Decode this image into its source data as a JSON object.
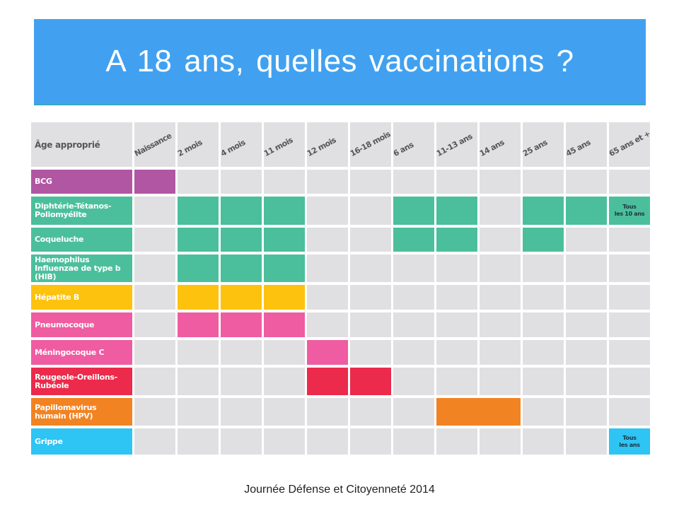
{
  "title": "A 18 ans, quelles vaccinations ?",
  "footer": "Journée Défense et Citoyenneté 2014",
  "colors": {
    "title_bg": "#41a1f0",
    "empty_cell": "#e0e0e2",
    "header_text": "#555759",
    "bcg": "#b156a3",
    "dtp": "#4bbf9b",
    "hepb": "#fdc20e",
    "pneumo": "#ef5ca1",
    "rouge": "#ec2a4b",
    "hpv": "#f28322",
    "grippe": "#2ec4f3"
  },
  "table": {
    "header_label": "Âge approprié",
    "ages": [
      "Naissance",
      "2 mois",
      "4 mois",
      "11 mois",
      "12 mois",
      "16-18 mois",
      "6 ans",
      "11-13 ans",
      "14 ans",
      "25 ans",
      "45 ans",
      "65 ans et +"
    ],
    "rows": [
      {
        "name": "BCG",
        "color": "#b156a3",
        "height": 34,
        "filled": [
          0
        ],
        "notes": {}
      },
      {
        "name": "Diphtérie-Tétanos-Poliomyélite",
        "color": "#4bbf9b",
        "height": 40,
        "filled": [
          1,
          2,
          3,
          6,
          7,
          9,
          10,
          11
        ],
        "notes": {
          "11": "Tous les 10 ans"
        }
      },
      {
        "name": "Coqueluche",
        "color": "#4bbf9b",
        "height": 34,
        "filled": [
          1,
          2,
          3,
          6,
          7,
          9
        ],
        "notes": {}
      },
      {
        "name": "Haemophilus Influenzae de type b (HIB)",
        "color": "#4bbf9b",
        "height": 39,
        "filled": [
          1,
          2,
          3
        ],
        "notes": {}
      },
      {
        "name": "Hépatite B",
        "color": "#fdc20e",
        "height": 35,
        "filled": [
          1,
          2,
          3
        ],
        "notes": {}
      },
      {
        "name": "Pneumocoque",
        "color": "#ef5ca1",
        "height": 35,
        "filled": [
          1,
          2,
          3
        ],
        "notes": {}
      },
      {
        "name": "Méningocoque C",
        "color": "#ef5ca1",
        "height": 35,
        "filled": [
          4
        ],
        "notes": {}
      },
      {
        "name": "Rougeole-Oreillons-Rubéole",
        "color": "#ec2a4b",
        "height": 39,
        "filled": [
          4,
          5
        ],
        "notes": {}
      },
      {
        "name": "Papillomavirus humain (HPV)",
        "color": "#f28322",
        "height": 39,
        "filled": [
          7,
          8
        ],
        "merged": [
          [
            7,
            8
          ]
        ],
        "notes": {}
      },
      {
        "name": "Grippe",
        "color": "#2ec4f3",
        "height": 37,
        "filled": [
          11
        ],
        "notes": {
          "11": "Tous les ans"
        }
      }
    ]
  }
}
